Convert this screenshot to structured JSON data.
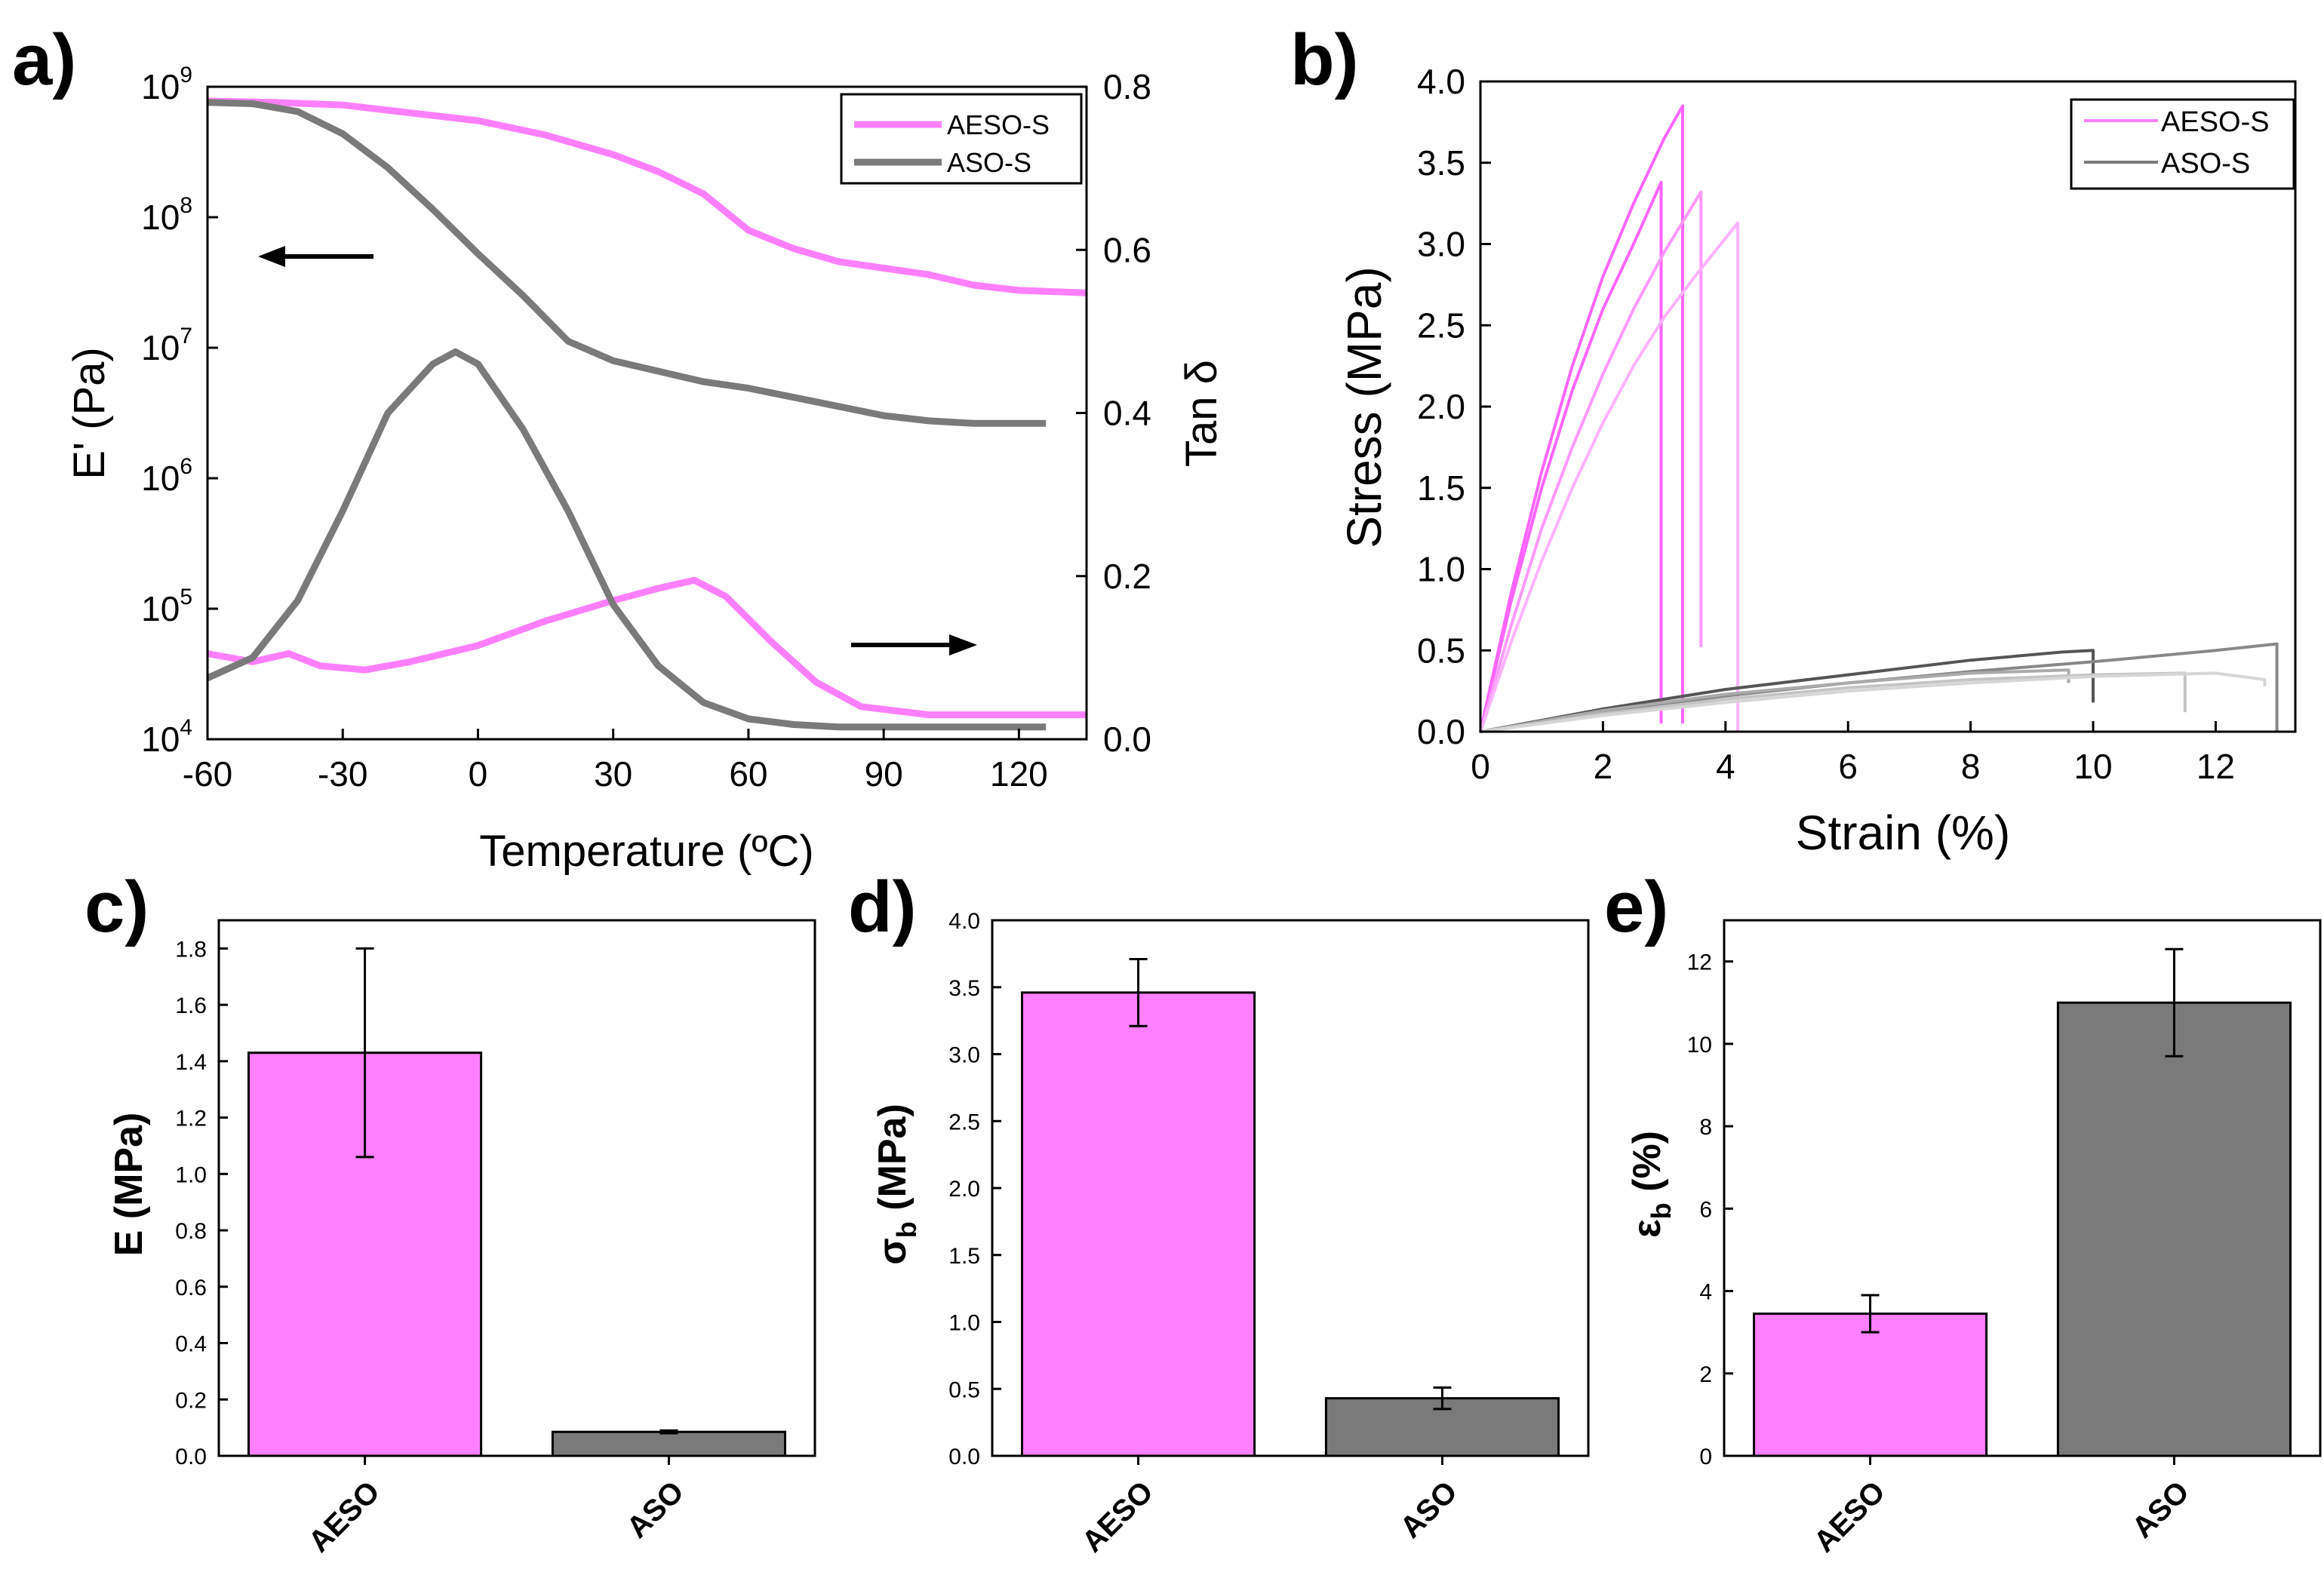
{
  "colors": {
    "pink": "#ff80ff",
    "gray": "#7a7a7a",
    "arrow": "#000000"
  },
  "panel_labels": {
    "a": "a)",
    "b": "b)",
    "c": "c)",
    "d": "d)",
    "e": "e)"
  },
  "chart_data": [
    {
      "id": "a",
      "type": "line",
      "xlabel": "Temperature (ºC)",
      "ylabel_left": "E' (Pa)",
      "ylabel_right": "Tan δ",
      "xlim": [
        -60,
        135
      ],
      "xticks": [
        -60,
        -30,
        0,
        30,
        60,
        90,
        120
      ],
      "ylim_left_log10": [
        4,
        9
      ],
      "yticks_left": [
        {
          "base": "10",
          "exp": "4",
          "v": 4
        },
        {
          "base": "10",
          "exp": "5",
          "v": 5
        },
        {
          "base": "10",
          "exp": "6",
          "v": 6
        },
        {
          "base": "10",
          "exp": "7",
          "v": 7
        },
        {
          "base": "10",
          "exp": "8",
          "v": 8
        },
        {
          "base": "10",
          "exp": "9",
          "v": 9
        }
      ],
      "ylim_right": [
        0,
        0.8
      ],
      "yticks_right": [
        "0.0",
        "0.2",
        "0.4",
        "0.6",
        "0.8"
      ],
      "legend": [
        {
          "name": "AESO-S",
          "color": "#ff80ff"
        },
        {
          "name": "ASO-S",
          "color": "#7a7a7a"
        }
      ],
      "series": [
        {
          "name": "AESO-S E'",
          "axis": "left",
          "color": "#ff80ff",
          "x": [
            -60,
            -45,
            -30,
            -15,
            0,
            15,
            30,
            40,
            50,
            60,
            70,
            80,
            90,
            100,
            110,
            120,
            135
          ],
          "log10": [
            8.89,
            8.88,
            8.86,
            8.8,
            8.74,
            8.63,
            8.48,
            8.35,
            8.18,
            7.9,
            7.76,
            7.66,
            7.61,
            7.56,
            7.48,
            7.44,
            7.42
          ]
        },
        {
          "name": "ASO-S E'",
          "axis": "left",
          "color": "#7a7a7a",
          "x": [
            -60,
            -50,
            -40,
            -30,
            -20,
            -10,
            0,
            10,
            20,
            30,
            40,
            50,
            60,
            70,
            80,
            90,
            100,
            110,
            120,
            126
          ],
          "log10": [
            8.88,
            8.87,
            8.81,
            8.64,
            8.38,
            8.06,
            7.72,
            7.4,
            7.05,
            6.9,
            6.82,
            6.74,
            6.69,
            6.62,
            6.55,
            6.48,
            6.44,
            6.42,
            6.42,
            6.42
          ]
        },
        {
          "name": "AESO-S Tan δ",
          "axis": "right",
          "color": "#ff80ff",
          "x": [
            -60,
            -50,
            -42,
            -35,
            -25,
            -15,
            0,
            15,
            30,
            40,
            48,
            55,
            65,
            75,
            85,
            100,
            120,
            135
          ],
          "y": [
            0.105,
            0.095,
            0.105,
            0.09,
            0.085,
            0.095,
            0.115,
            0.145,
            0.17,
            0.185,
            0.195,
            0.175,
            0.12,
            0.07,
            0.04,
            0.03,
            0.03,
            0.03
          ]
        },
        {
          "name": "ASO-S Tan δ",
          "axis": "right",
          "color": "#7a7a7a",
          "x": [
            -60,
            -50,
            -40,
            -30,
            -20,
            -10,
            -5,
            0,
            10,
            20,
            30,
            40,
            50,
            60,
            70,
            80,
            100,
            126
          ],
          "y": [
            0.075,
            0.1,
            0.17,
            0.28,
            0.4,
            0.46,
            0.475,
            0.46,
            0.38,
            0.28,
            0.165,
            0.09,
            0.045,
            0.025,
            0.018,
            0.015,
            0.015,
            0.015
          ]
        }
      ]
    },
    {
      "id": "b",
      "type": "line",
      "xlabel": "Strain (%)",
      "ylabel": "Stress (MPa)",
      "xlim": [
        0,
        13.3
      ],
      "xticks": [
        "0",
        "2",
        "4",
        "6",
        "8",
        "10",
        "12"
      ],
      "ylim": [
        0,
        4.0
      ],
      "yticks": [
        "0.0",
        "0.5",
        "1.0",
        "1.5",
        "2.0",
        "2.5",
        "3.0",
        "3.5",
        "4.0"
      ],
      "legend": [
        {
          "name": "AESO-S",
          "color": "#ff80ff"
        },
        {
          "name": "ASO-S",
          "color": "#7a7a7a"
        }
      ],
      "series": [
        {
          "name": "AESO-S 1",
          "color": "#ff66ff",
          "x": [
            0,
            0.5,
            1,
            1.5,
            2,
            2.5,
            3,
            3.3,
            3.3
          ],
          "y": [
            0,
            0.85,
            1.6,
            2.25,
            2.8,
            3.25,
            3.65,
            3.85,
            0.05
          ]
        },
        {
          "name": "AESO-S 2",
          "color": "#ff66ff",
          "x": [
            0,
            0.5,
            1,
            1.5,
            2,
            2.5,
            2.95,
            2.95
          ],
          "y": [
            0,
            0.8,
            1.5,
            2.1,
            2.6,
            3.0,
            3.38,
            0.05
          ]
        },
        {
          "name": "AESO-S 3",
          "color": "#ff99ff",
          "x": [
            0,
            0.5,
            1,
            1.5,
            2,
            2.5,
            3,
            3.6,
            3.6
          ],
          "y": [
            0,
            0.65,
            1.25,
            1.75,
            2.2,
            2.6,
            2.95,
            3.32,
            0.52
          ]
        },
        {
          "name": "AESO-S 4",
          "color": "#ffb3ff",
          "x": [
            0,
            0.5,
            1,
            1.5,
            2,
            2.5,
            3,
            3.5,
            4.2,
            4.2
          ],
          "y": [
            0,
            0.55,
            1.05,
            1.5,
            1.9,
            2.25,
            2.55,
            2.8,
            3.13,
            0.0
          ]
        },
        {
          "name": "ASO-S 1",
          "color": "#555555",
          "x": [
            0,
            2,
            4,
            6,
            8,
            9.5,
            10.0,
            10.0
          ],
          "y": [
            0,
            0.14,
            0.26,
            0.35,
            0.44,
            0.49,
            0.5,
            0.18
          ]
        },
        {
          "name": "ASO-S 2",
          "color": "#888888",
          "x": [
            0,
            2,
            4,
            6,
            8,
            10,
            12,
            13.0,
            13.0
          ],
          "y": [
            0,
            0.12,
            0.22,
            0.3,
            0.37,
            0.43,
            0.5,
            0.54,
            0.0
          ]
        },
        {
          "name": "ASO-S 3",
          "color": "#aaaaaa",
          "x": [
            0,
            2,
            4,
            6,
            8,
            9.6,
            9.6
          ],
          "y": [
            0,
            0.13,
            0.23,
            0.3,
            0.36,
            0.38,
            0.3
          ]
        },
        {
          "name": "ASO-S 4",
          "color": "#c4c4c4",
          "x": [
            0,
            2,
            4,
            6,
            8,
            10,
            11.5,
            11.5
          ],
          "y": [
            0,
            0.11,
            0.2,
            0.27,
            0.32,
            0.35,
            0.36,
            0.12
          ]
        },
        {
          "name": "ASO-S 5",
          "color": "#d6d6d6",
          "x": [
            0,
            2,
            4,
            6,
            8,
            10,
            12,
            12.8,
            12.8
          ],
          "y": [
            0,
            0.1,
            0.18,
            0.25,
            0.3,
            0.34,
            0.36,
            0.32,
            0.28
          ]
        }
      ]
    },
    {
      "id": "c",
      "type": "bar",
      "categories": [
        "AESO",
        "ASO"
      ],
      "values": [
        1.43,
        0.085
      ],
      "errors": [
        0.37,
        0.005
      ],
      "colors": [
        "#ff80ff",
        "#7a7a7a"
      ],
      "ylabel": "E (MPa)",
      "ylim": [
        0,
        1.9
      ],
      "yticks": [
        "0.0",
        "0.2",
        "0.4",
        "0.6",
        "0.8",
        "1.0",
        "1.2",
        "1.4",
        "1.6",
        "1.8"
      ]
    },
    {
      "id": "d",
      "type": "bar",
      "categories": [
        "AESO",
        "ASO"
      ],
      "values": [
        3.46,
        0.43
      ],
      "errors": [
        0.25,
        0.08
      ],
      "colors": [
        "#ff80ff",
        "#7a7a7a"
      ],
      "ylabel": "σb (MPa)",
      "ylabel_main": "σ",
      "ylabel_sub": "b",
      "ylabel_unit": " (MPa)",
      "ylim": [
        0,
        4.0
      ],
      "yticks": [
        "0.0",
        "0.5",
        "1.0",
        "1.5",
        "2.0",
        "2.5",
        "3.0",
        "3.5",
        "4.0"
      ]
    },
    {
      "id": "e",
      "type": "bar",
      "categories": [
        "AESO",
        "ASO"
      ],
      "values": [
        3.45,
        11.0
      ],
      "errors": [
        0.45,
        1.3
      ],
      "colors": [
        "#ff80ff",
        "#7a7a7a"
      ],
      "ylabel": "εb (%)",
      "ylabel_main": "ε",
      "ylabel_sub": "b",
      "ylabel_unit": " (%)",
      "ylim": [
        0,
        13
      ],
      "yticks": [
        "0",
        "2",
        "4",
        "6",
        "8",
        "10",
        "12"
      ]
    }
  ]
}
